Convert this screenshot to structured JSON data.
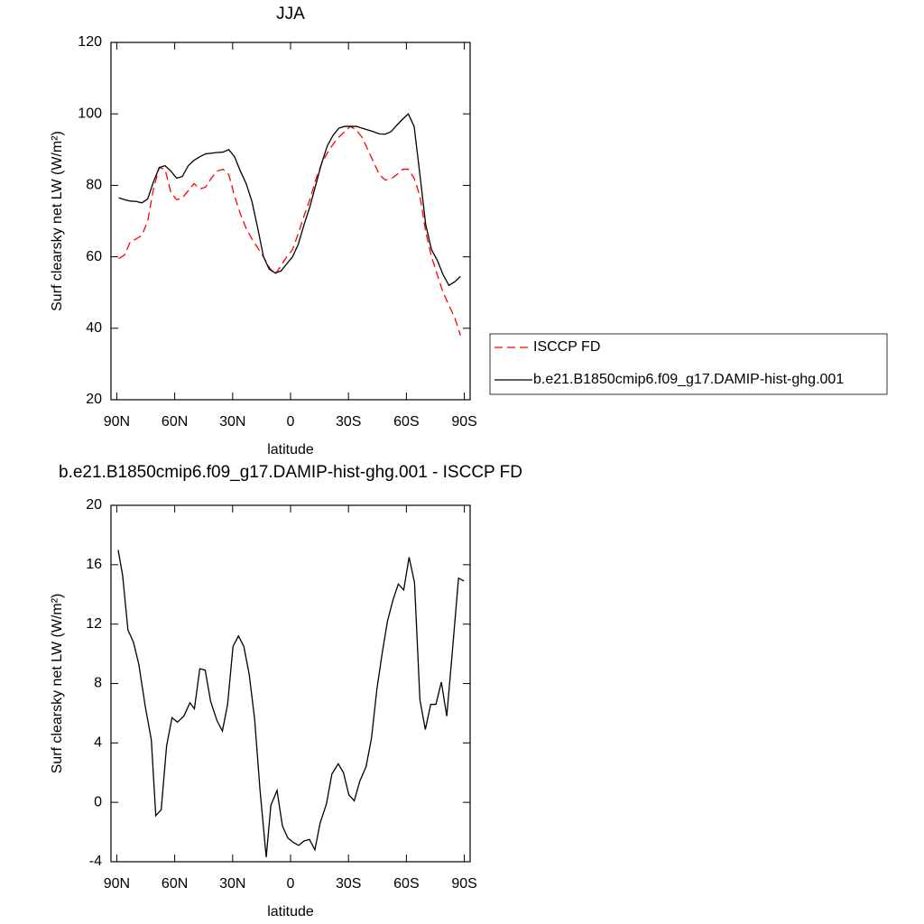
{
  "chart_data": [
    {
      "type": "line",
      "title": "JJA",
      "xlabel": "latitude",
      "ylabel": "Surf clearsky net LW (W/m²)",
      "x": [
        89,
        86,
        83,
        80,
        77,
        74,
        71,
        68,
        65,
        62,
        59,
        56,
        53,
        50,
        47,
        44,
        41,
        38,
        35,
        32,
        29,
        26,
        23,
        20,
        17,
        14,
        11,
        8,
        5,
        2,
        -1,
        -4,
        -7,
        -10,
        -13,
        -16,
        -19,
        -22,
        -25,
        -28,
        -31,
        -34,
        -37,
        -40,
        -43,
        -46,
        -49,
        -52,
        -55,
        -58,
        -61,
        -64,
        -67,
        -70,
        -73,
        -76,
        -79,
        -82,
        -85,
        -88
      ],
      "series": [
        {
          "name": "ISCCP FD",
          "color": "#ff0000",
          "line_style": "dashed",
          "values": [
            59.5,
            60.5,
            64.2,
            65,
            66,
            70,
            79,
            85,
            84.5,
            78,
            76,
            76.5,
            78.5,
            80.5,
            79,
            79.5,
            82,
            84,
            84.5,
            83,
            77,
            72,
            68,
            65,
            62.5,
            60,
            57,
            55,
            57.5,
            60,
            62,
            66.5,
            71.5,
            76,
            81.5,
            86,
            89,
            91.5,
            93.5,
            95,
            96.5,
            95.5,
            93.5,
            90,
            86.5,
            83,
            81.5,
            81.8,
            83,
            84.5,
            84.5,
            82,
            77,
            67,
            60,
            55,
            50,
            46.5,
            43,
            38
          ]
        },
        {
          "name": "b.e21.B1850cmip6.f09_g17.DAMIP-hist-ghg.001",
          "color": "#000000",
          "line_style": "solid",
          "values": [
            76.5,
            76,
            75.6,
            75.5,
            75.1,
            76.2,
            81,
            85,
            85.5,
            84,
            82,
            82.5,
            85.5,
            87,
            88,
            88.8,
            89,
            89.2,
            89.3,
            90,
            88,
            84,
            80.5,
            75.5,
            68,
            60,
            56.5,
            55.5,
            56,
            58,
            60,
            63.5,
            69,
            74,
            80,
            86,
            91,
            94,
            96,
            96.5,
            96.5,
            96.5,
            96,
            95.5,
            95,
            94.4,
            94.3,
            95,
            96.8,
            98.5,
            100,
            96.5,
            83,
            69,
            62,
            59,
            55,
            52,
            53,
            54.5
          ]
        }
      ],
      "xlim": [
        93,
        -93
      ],
      "ylim": [
        20,
        120
      ],
      "xticks": [
        {
          "value": 90,
          "label": "90N"
        },
        {
          "value": 60,
          "label": "60N"
        },
        {
          "value": 30,
          "label": "30N"
        },
        0,
        {
          "value": -30,
          "label": "30S"
        },
        {
          "value": -60,
          "label": "60S"
        },
        {
          "value": -90,
          "label": "90S"
        }
      ],
      "yticks": [
        20,
        40,
        60,
        80,
        100,
        120
      ],
      "legend": "right"
    },
    {
      "type": "line",
      "title": "b.e21.B1850cmip6.f09_g17.DAMIP-hist-ghg.001 - ISCCP FD",
      "xlabel": "latitude",
      "ylabel": "Surf clearsky net LW (W/m²)",
      "x": [
        89.3,
        87,
        84.2,
        81.4,
        78.6,
        75.3,
        72.1,
        69.8,
        67,
        64.2,
        61.4,
        58.6,
        55.3,
        52.1,
        49.8,
        47,
        44.2,
        41.4,
        38.1,
        35.3,
        32.6,
        29.8,
        27,
        24.2,
        21.4,
        18.6,
        15.8,
        12.6,
        10.2,
        7,
        4.2,
        1.4,
        -1.4,
        -4.2,
        -7,
        -9.8,
        -12.6,
        -15.3,
        -18.6,
        -21.4,
        -24.7,
        -27.4,
        -30.2,
        -33,
        -35.8,
        -39.1,
        -41.9,
        -44.7,
        -47.4,
        -50.2,
        -53,
        -55.8,
        -58.6,
        -61.4,
        -64.2,
        -67,
        -69.8,
        -72.6,
        -75.3,
        -78.1,
        -80.9,
        -83.7,
        -87,
        -89.8
      ],
      "series": [
        {
          "color": "#000000",
          "line_style": "solid",
          "values": [
            17,
            15.3,
            11.6,
            10.8,
            9.3,
            6.5,
            4.2,
            -0.9,
            -0.5,
            3.8,
            5.7,
            5.4,
            5.8,
            6.7,
            6.3,
            9,
            8.9,
            6.8,
            5.5,
            4.8,
            6.6,
            10.5,
            11.2,
            10.5,
            8.6,
            5.6,
            0.8,
            -3.7,
            -0.2,
            0.8,
            -1.6,
            -2.4,
            -2.7,
            -2.9,
            -2.6,
            -2.5,
            -3.2,
            -1.4,
            -0.1,
            1.9,
            2.6,
            2,
            0.5,
            0.1,
            1.4,
            2.4,
            4.3,
            7.6,
            10,
            12.2,
            13.6,
            14.7,
            14.3,
            16.5,
            14.8,
            6.9,
            4.9,
            6.6,
            6.6,
            8.1,
            5.8,
            10,
            15.1,
            14.9
          ]
        }
      ],
      "xlim": [
        93,
        -93
      ],
      "ylim": [
        -4,
        20
      ],
      "xticks": [
        {
          "value": 90,
          "label": "90N"
        },
        {
          "value": 60,
          "label": "60N"
        },
        {
          "value": 30,
          "label": "30N"
        },
        0,
        {
          "value": -30,
          "label": "30S"
        },
        {
          "value": -60,
          "label": "60S"
        },
        {
          "value": -90,
          "label": "90S"
        }
      ],
      "yticks": [
        -4,
        0,
        4,
        8,
        12,
        16,
        20
      ]
    }
  ]
}
